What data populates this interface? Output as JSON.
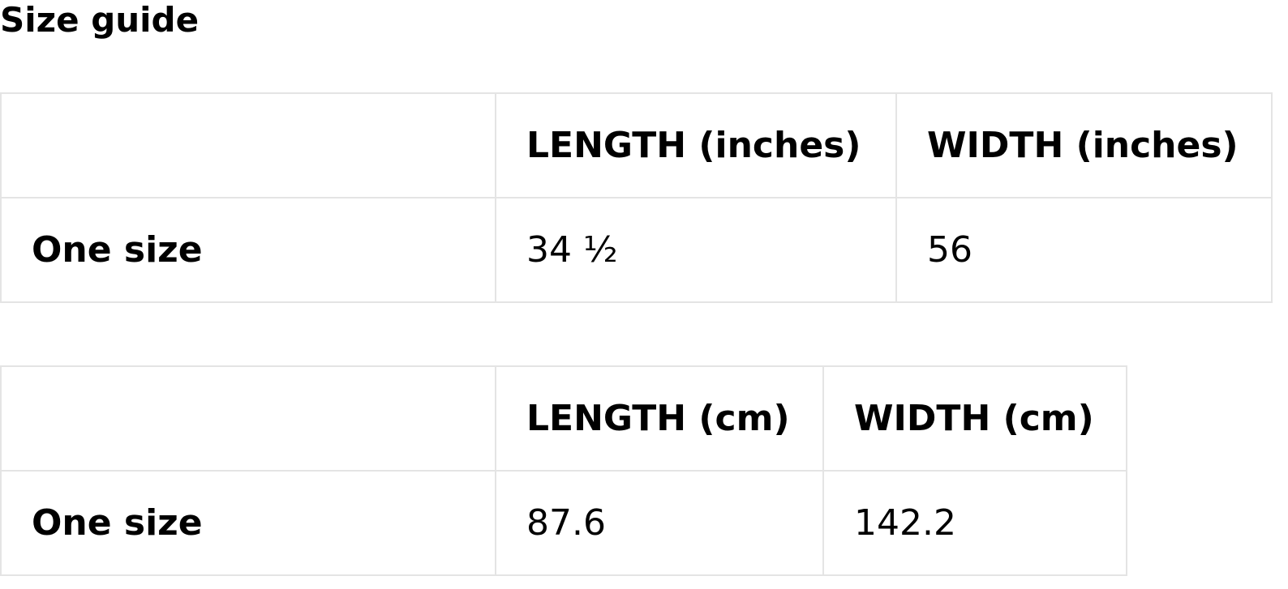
{
  "title": "Size guide",
  "tables": [
    {
      "headers": [
        "",
        "LENGTH (inches)",
        "WIDTH (inches)"
      ],
      "rows": [
        {
          "label": "One size",
          "length": "34 ½",
          "width": "56"
        }
      ]
    },
    {
      "headers": [
        "",
        "LENGTH (cm)",
        "WIDTH (cm)"
      ],
      "rows": [
        {
          "label": "One size",
          "length": "87.6",
          "width": "142.2"
        }
      ]
    }
  ]
}
